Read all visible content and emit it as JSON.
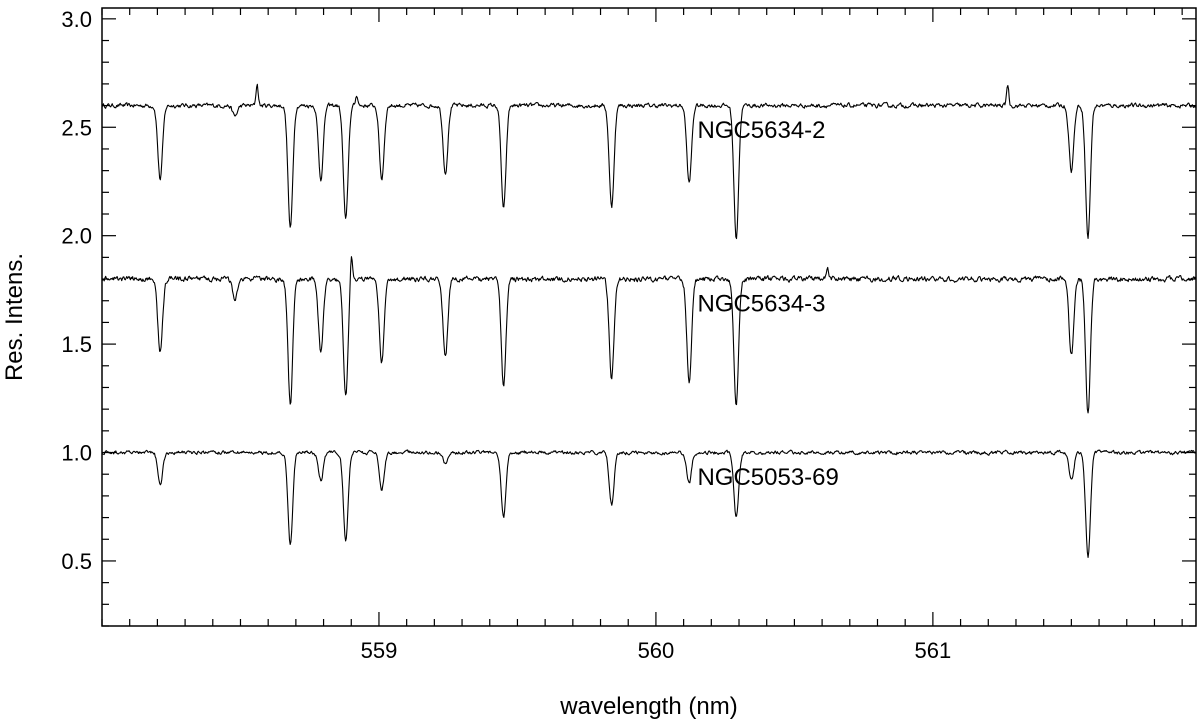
{
  "chart_data": {
    "type": "line",
    "title": "",
    "xlabel": "wavelength (nm)",
    "ylabel": "Res. Intens.",
    "xlim": [
      558.0,
      561.95
    ],
    "ylim": [
      0.2,
      3.05
    ],
    "x_ticks": [
      559,
      560,
      561
    ],
    "x_minor_step": 0.1,
    "y_ticks": [
      0.5,
      1.0,
      1.5,
      2.0,
      2.5,
      3.0
    ],
    "y_minor_step": 0.1,
    "grid": false,
    "legend": "none",
    "line_color": "#000000",
    "series": [
      {
        "name": "NGC5634-2",
        "continuum": 2.6,
        "noise_amplitude": 0.018,
        "label_position": [
          560.15,
          2.45
        ],
        "absorption_lines": [
          {
            "wavelength": 558.21,
            "depth": 0.34
          },
          {
            "wavelength": 558.48,
            "depth": 0.05
          },
          {
            "wavelength": 558.68,
            "depth": 0.57
          },
          {
            "wavelength": 558.79,
            "depth": 0.34
          },
          {
            "wavelength": 558.88,
            "depth": 0.53
          },
          {
            "wavelength": 559.01,
            "depth": 0.34
          },
          {
            "wavelength": 559.24,
            "depth": 0.31
          },
          {
            "wavelength": 559.45,
            "depth": 0.48
          },
          {
            "wavelength": 559.84,
            "depth": 0.47
          },
          {
            "wavelength": 560.12,
            "depth": 0.36
          },
          {
            "wavelength": 560.29,
            "depth": 0.61
          },
          {
            "wavelength": 561.5,
            "depth": 0.3
          },
          {
            "wavelength": 561.56,
            "depth": 0.61
          }
        ],
        "emission_spikes": [
          {
            "wavelength": 558.56,
            "height": 0.1
          },
          {
            "wavelength": 558.92,
            "height": 0.05
          },
          {
            "wavelength": 561.27,
            "height": 0.1
          }
        ]
      },
      {
        "name": "NGC5634-3",
        "continuum": 1.8,
        "noise_amplitude": 0.022,
        "label_position": [
          560.15,
          1.65
        ],
        "absorption_lines": [
          {
            "wavelength": 558.21,
            "depth": 0.34
          },
          {
            "wavelength": 558.48,
            "depth": 0.1
          },
          {
            "wavelength": 558.68,
            "depth": 0.58
          },
          {
            "wavelength": 558.79,
            "depth": 0.34
          },
          {
            "wavelength": 558.88,
            "depth": 0.53
          },
          {
            "wavelength": 559.01,
            "depth": 0.38
          },
          {
            "wavelength": 559.24,
            "depth": 0.36
          },
          {
            "wavelength": 559.45,
            "depth": 0.5
          },
          {
            "wavelength": 559.84,
            "depth": 0.46
          },
          {
            "wavelength": 560.12,
            "depth": 0.47
          },
          {
            "wavelength": 560.29,
            "depth": 0.58
          },
          {
            "wavelength": 561.5,
            "depth": 0.35
          },
          {
            "wavelength": 561.56,
            "depth": 0.62
          }
        ],
        "emission_spikes": [
          {
            "wavelength": 558.9,
            "height": 0.14
          },
          {
            "wavelength": 560.62,
            "height": 0.05
          }
        ]
      },
      {
        "name": "NGC5053-69",
        "continuum": 1.0,
        "noise_amplitude": 0.015,
        "label_position": [
          560.15,
          0.85
        ],
        "absorption_lines": [
          {
            "wavelength": 558.21,
            "depth": 0.15
          },
          {
            "wavelength": 558.68,
            "depth": 0.43
          },
          {
            "wavelength": 558.79,
            "depth": 0.13
          },
          {
            "wavelength": 558.88,
            "depth": 0.4
          },
          {
            "wavelength": 559.01,
            "depth": 0.17
          },
          {
            "wavelength": 559.24,
            "depth": 0.05
          },
          {
            "wavelength": 559.45,
            "depth": 0.3
          },
          {
            "wavelength": 559.84,
            "depth": 0.24
          },
          {
            "wavelength": 560.12,
            "depth": 0.14
          },
          {
            "wavelength": 560.29,
            "depth": 0.3
          },
          {
            "wavelength": 561.5,
            "depth": 0.13
          },
          {
            "wavelength": 561.56,
            "depth": 0.48
          }
        ],
        "emission_spikes": []
      }
    ]
  }
}
